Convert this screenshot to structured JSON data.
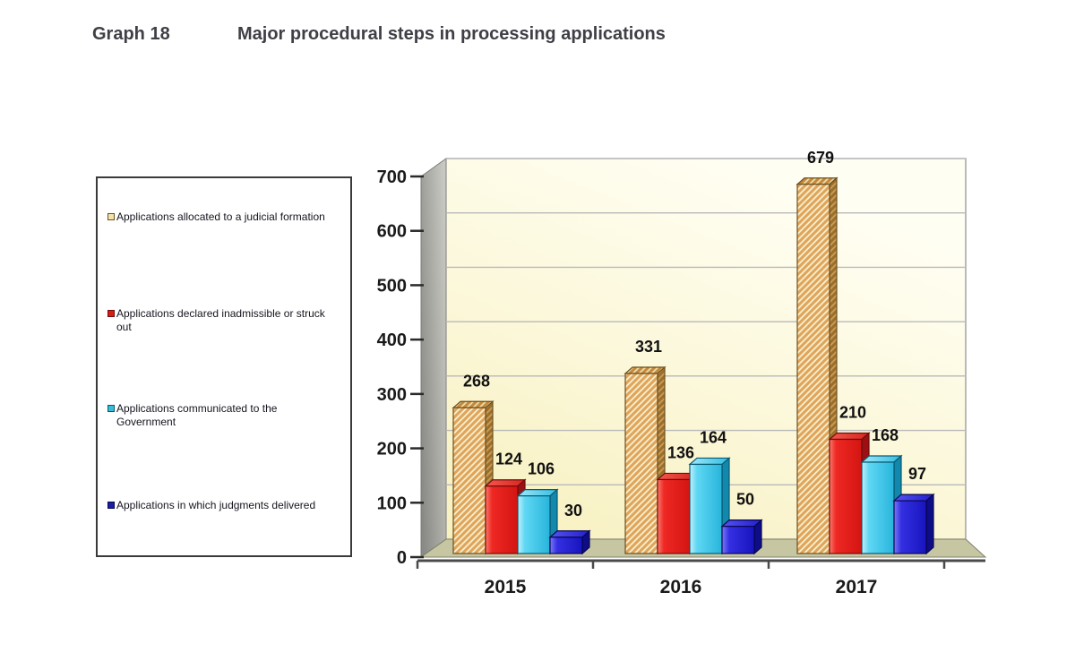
{
  "header": {
    "graph_label": "Graph 18",
    "title": "Major procedural steps in processing applications"
  },
  "legend": {
    "position": "left",
    "items": [
      {
        "label": "Applications allocated  to a judicial formation",
        "marker_color": "#F2E4AE",
        "marker_border": "#6E4F1E"
      },
      {
        "label": "Applications declared inadmissible or struck out",
        "marker_color": "#D81D19",
        "marker_border": "#700D0B"
      },
      {
        "label": "Applications communicated to the Government",
        "marker_color": "#38BCD9",
        "marker_border": "#085A72"
      },
      {
        "label": "Applications in which judgments delivered",
        "marker_color": "#1D1DA8",
        "marker_border": "#080850"
      }
    ]
  },
  "chart_data": {
    "type": "bar",
    "projection": "3d",
    "title": "Major procedural steps in processing applications",
    "categories": [
      "2015",
      "2016",
      "2017"
    ],
    "series": [
      {
        "name": "Applications allocated  to a judicial formation",
        "style": "hatched",
        "color": "#DFA45A",
        "values": [
          268,
          331,
          679
        ]
      },
      {
        "name": "Applications declared inadmissible or struck out",
        "style": "solid",
        "color": "#E01E1A",
        "values": [
          124,
          136,
          210
        ]
      },
      {
        "name": "Applications communicated to the Government",
        "style": "solid",
        "color": "#4ED0F0",
        "values": [
          106,
          164,
          168
        ]
      },
      {
        "name": "Applications in which judgments delivered",
        "style": "solid",
        "color": "#2421DC",
        "values": [
          30,
          50,
          97
        ]
      }
    ],
    "ylim": [
      0,
      700
    ],
    "ytick_interval": 100,
    "yticks": [
      0,
      100,
      200,
      300,
      400,
      500,
      600,
      700
    ],
    "grid": true,
    "legend_position": "left",
    "data_labels": true,
    "palette": {
      "wall": "#FBF5CC",
      "side_wall": "#9A9A96",
      "floor": "#C6C6A2",
      "hatch_bg": "#F6ECC9",
      "hatch_stripe": "#DFA45A",
      "gridline": "#B9B9B9",
      "axis_text": "#1a1a1a"
    }
  }
}
